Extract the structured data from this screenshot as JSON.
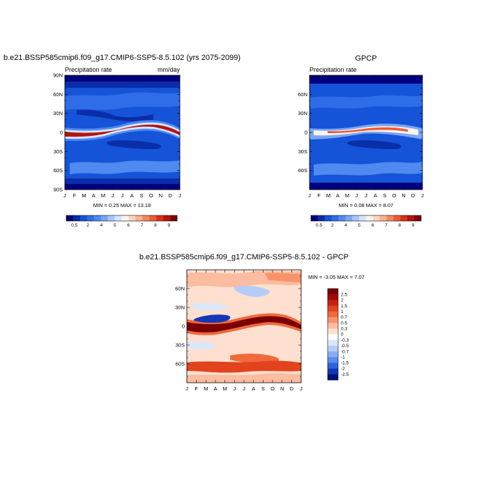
{
  "chart_data": [
    {
      "type": "heatmap",
      "title": "b.e21.BSSP585cmip6.f09_g17.CMIP6-SSP5-8.5.102 (yrs 2075-2099)",
      "left_label": "Precipitation rate",
      "right_label": "mm/day",
      "x_ticks": [
        "J",
        "F",
        "M",
        "A",
        "M",
        "J",
        "J",
        "A",
        "S",
        "O",
        "N",
        "D",
        "J"
      ],
      "y_ticks": [
        "90N",
        "60N",
        "30N",
        "0",
        "30S",
        "60S",
        "90S"
      ],
      "ylim": [
        -90,
        90
      ],
      "min_max_text": "MIN =   0.25 MAX =  13.18",
      "colorbar": {
        "labels": [
          "0.5",
          "2",
          "4",
          "5",
          "6",
          "7",
          "8",
          "9"
        ],
        "colors": [
          "#00007f",
          "#0a2ea8",
          "#1553d8",
          "#2f6de8",
          "#4f8af0",
          "#7aa6f4",
          "#a9c6f8",
          "#d6e4fb",
          "#fdf3ea",
          "#fdd5bd",
          "#fbb091",
          "#f7865f",
          "#ee5a35",
          "#d8301b",
          "#b41510",
          "#80000a"
        ]
      }
    },
    {
      "type": "heatmap",
      "title": "GPCP",
      "left_label": "Precipitation rate",
      "x_ticks": [
        "J",
        "F",
        "M",
        "A",
        "M",
        "J",
        "J",
        "A",
        "S",
        "O",
        "N",
        "D",
        "J"
      ],
      "y_ticks": [
        "60N",
        "30N",
        "0",
        "30S",
        "60S"
      ],
      "ylim": [
        -90,
        90
      ],
      "min_max_text": "MIN =   0.08 MAX =    8.07",
      "colorbar": {
        "labels": [
          "0.5",
          "2",
          "4",
          "5",
          "6",
          "7",
          "8",
          "9"
        ],
        "colors": [
          "#00007f",
          "#0a2ea8",
          "#1553d8",
          "#2f6de8",
          "#4f8af0",
          "#7aa6f4",
          "#a9c6f8",
          "#d6e4fb",
          "#fdf3ea",
          "#fdd5bd",
          "#fbb091",
          "#f7865f",
          "#ee5a35",
          "#d8301b",
          "#b41510",
          "#80000a"
        ]
      }
    },
    {
      "type": "heatmap",
      "title": "b.e21.BSSP585cmip6.f09_g17.CMIP6-SSP5-8.5.102 - GPCP",
      "x_ticks": [
        "J",
        "F",
        "M",
        "A",
        "M",
        "J",
        "J",
        "A",
        "S",
        "O",
        "N",
        "D",
        "J"
      ],
      "y_ticks": [
        "60N",
        "30N",
        "0",
        "30S",
        "60S"
      ],
      "ylim": [
        -90,
        90
      ],
      "min_max_text": "MIN =   -3.05 MAX =    7.07",
      "colorbar": {
        "labels": [
          "2.5",
          "2",
          "1.5",
          "1",
          "0.7",
          "0.5",
          "0.3",
          "0",
          "-0.3",
          "-0.5",
          "-0.7",
          "-1",
          "-1.5",
          "-2",
          "-2.5"
        ],
        "colors": [
          "#7a0000",
          "#a3090b",
          "#c7200d",
          "#e2431e",
          "#f06a3c",
          "#f7936a",
          "#fbbc9f",
          "#fde0cf",
          "#ffffff",
          "#dbe7fb",
          "#b3cdf7",
          "#86aef1",
          "#5a8de9",
          "#2f63dc",
          "#1237b8",
          "#00127c"
        ]
      }
    }
  ]
}
